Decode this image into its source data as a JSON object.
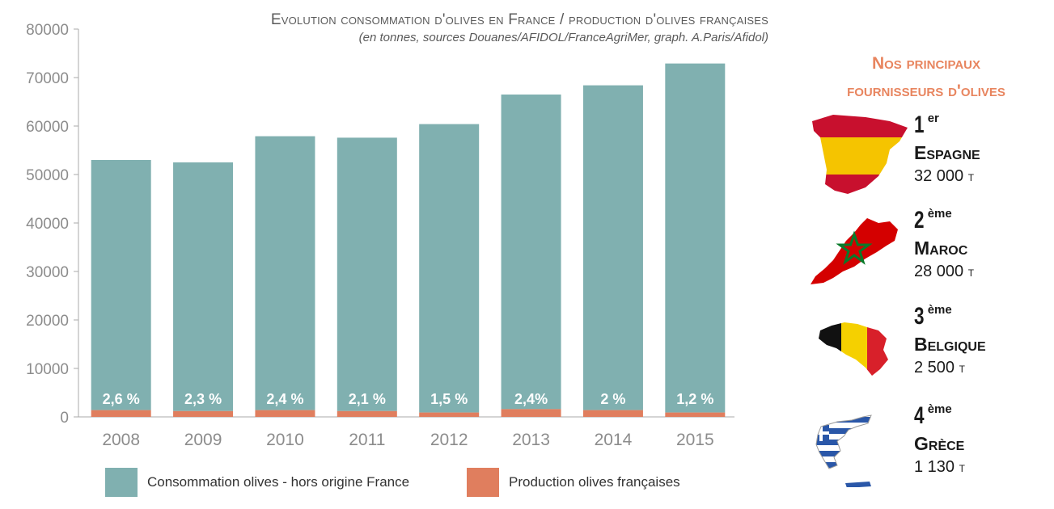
{
  "title": "Evolution consommation d'olives en France / production d'olives françaises",
  "subtitle": "(en tonnes, sources Douanes/AFIDOL/FranceAgriMer, graph. A.Paris/Afidol)",
  "colors": {
    "consumption": "#80b0b0",
    "production": "#e07e5e",
    "axis": "#aaaaaa",
    "accent": "#e8855f"
  },
  "chart_data": {
    "type": "bar",
    "stacked": true,
    "categories": [
      "2008",
      "2009",
      "2010",
      "2011",
      "2012",
      "2013",
      "2014",
      "2015"
    ],
    "series": [
      {
        "name": "Consommation olives - hors origine France",
        "values": [
          51600,
          51300,
          56500,
          56400,
          59500,
          64900,
          67000,
          72000
        ]
      },
      {
        "name": "Production olives françaises",
        "values": [
          1400,
          1200,
          1400,
          1200,
          900,
          1600,
          1400,
          900
        ]
      }
    ],
    "data_labels": [
      "2,6 %",
      "2,3 %",
      "2,4 %",
      "2,1 %",
      "1,5 %",
      "2,4%",
      "2 %",
      "1,2 %"
    ],
    "yticks": [
      "0",
      "10000",
      "20000",
      "30000",
      "40000",
      "50000",
      "60000",
      "70000",
      "80000"
    ],
    "ylim": [
      0,
      80000
    ],
    "grid": false,
    "legend_position": "bottom"
  },
  "legend": {
    "consumption": "Consommation olives - hors origine France",
    "production": "Production olives françaises"
  },
  "side": {
    "title_line1": "Nos principaux",
    "title_line2": "fournisseurs d'olives",
    "suppliers": [
      {
        "rank": "1",
        "sup": "er",
        "country": "Espagne",
        "amount": "32 000",
        "unit": "t",
        "icon": "spain-flag-map-icon"
      },
      {
        "rank": "2",
        "sup": "ème",
        "country": "Maroc",
        "amount": "28 000",
        "unit": "t",
        "icon": "morocco-flag-map-icon"
      },
      {
        "rank": "3",
        "sup": "ème",
        "country": "Belgique",
        "amount": "2 500",
        "unit": "t",
        "icon": "belgium-flag-map-icon"
      },
      {
        "rank": "4",
        "sup": "ème",
        "country": "Grèce",
        "amount": "1 130",
        "unit": "t",
        "icon": "greece-flag-map-icon"
      }
    ]
  }
}
